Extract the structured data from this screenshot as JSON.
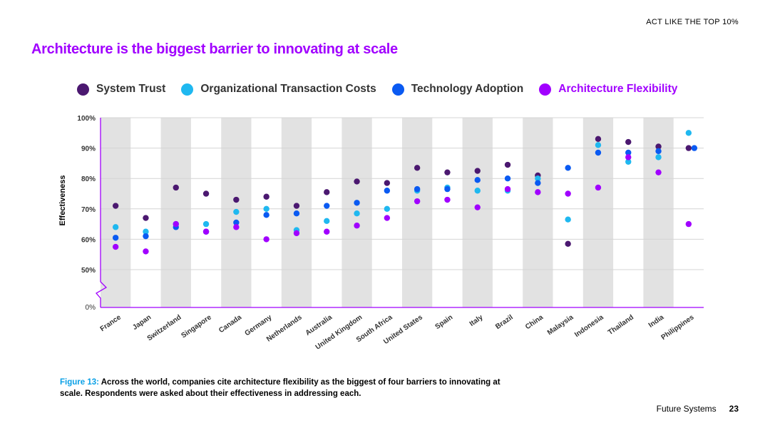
{
  "header": {
    "tagline": "ACT LIKE THE TOP 10%"
  },
  "title": "Architecture is the biggest barrier to innovating at scale",
  "colors": {
    "system_trust": "#4b1870",
    "organizational_transaction_costs": "#1fb8f0",
    "technology_adoption": "#0a5af2",
    "architecture_flexibility": "#a100ff",
    "title": "#a100ff",
    "band": "#e2e2e2",
    "axis": "#a100ff"
  },
  "legend": [
    {
      "label": "System Trust",
      "icon": "dot"
    },
    {
      "label": "Organizational Transaction Costs",
      "icon": "dot"
    },
    {
      "label": "Technology Adoption",
      "icon": "dot"
    },
    {
      "label": "Architecture Flexibility",
      "icon": "dot"
    }
  ],
  "chart_data": {
    "type": "scatter",
    "title": "Architecture is the biggest barrier to innovating at scale",
    "xlabel": "",
    "ylabel": "Effectiveness",
    "ylim": [
      50,
      100
    ],
    "yticks": [
      "100%",
      "90%",
      "80%",
      "70%",
      "60%",
      "50%"
    ],
    "ybreak_label": "0%",
    "grid": true,
    "categories": [
      "France",
      "Japan",
      "Switzerland",
      "Singapore",
      "Canada",
      "Germany",
      "Netherlands",
      "Australia",
      "United Kingdom",
      "South Africa",
      "United States",
      "Spain",
      "Italy",
      "Brazil",
      "China",
      "Malaysia",
      "Indonesia",
      "Thailand",
      "India",
      "Philippines"
    ],
    "series": [
      {
        "name": "System Trust",
        "values": [
          71,
          67,
          77,
          75,
          73,
          74,
          71,
          75.5,
          79,
          78.5,
          83.5,
          82,
          82.5,
          84.5,
          81,
          58.5,
          93,
          92,
          90.5,
          90
        ]
      },
      {
        "name": "Organizational Transaction Costs",
        "values": [
          64,
          62.5,
          65,
          65,
          69,
          70,
          63,
          66,
          68.5,
          70,
          76,
          77,
          76,
          76,
          80,
          66.5,
          91,
          85.5,
          87,
          95
        ]
      },
      {
        "name": "Technology Adoption",
        "values": [
          60.5,
          61,
          64,
          62.5,
          65.5,
          68,
          68.5,
          71,
          72,
          76,
          76.5,
          76.5,
          79.5,
          80,
          78.5,
          83.5,
          88.5,
          88.5,
          89,
          90
        ]
      },
      {
        "name": "Architecture Flexibility",
        "values": [
          57.5,
          56,
          65,
          62.5,
          64,
          60,
          62,
          62.5,
          64.5,
          67,
          72.5,
          73,
          70.5,
          76.5,
          75.5,
          75,
          77,
          87,
          82,
          65
        ]
      }
    ]
  },
  "caption": {
    "label": "Figure 13:",
    "text": "Across the world, companies cite architecture flexibility as the biggest of four barriers to innovating at scale. Respondents were asked about their effectiveness in addressing each."
  },
  "footer": {
    "section": "Future Systems",
    "page": "23"
  }
}
